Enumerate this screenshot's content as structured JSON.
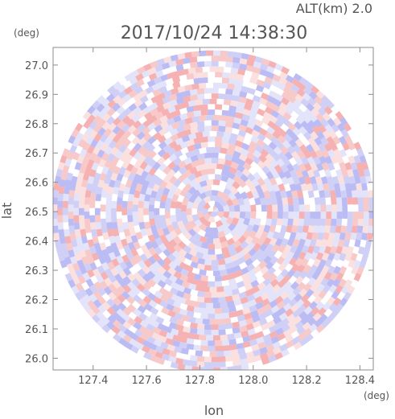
{
  "header": {
    "altitude_label": "ALT(km)  2.0",
    "timestamp": "2017/10/24 14:38:30"
  },
  "chart_data": {
    "type": "heatmap",
    "title": "2017/10/24 14:38:30",
    "subtitle": "ALT(km)  2.0",
    "xlabel": "lon",
    "ylabel": "lat",
    "x_unit": "(deg)",
    "y_unit": "(deg)",
    "xlim": [
      127.25,
      128.45
    ],
    "ylim": [
      25.96,
      27.06
    ],
    "x_ticks": [
      "127.4",
      "127.6",
      "127.8",
      "128.0",
      "128.2",
      "128.4"
    ],
    "y_ticks": [
      "27.0",
      "26.9",
      "26.8",
      "26.7",
      "26.6",
      "26.5",
      "26.4",
      "26.3",
      "26.2",
      "26.1",
      "26.0"
    ],
    "radar_center": {
      "lon": 127.85,
      "lat": 26.5
    },
    "radar_radius_deg_lat": 0.55,
    "grid": false,
    "legend": "none",
    "colors": {
      "positive": "#f4a5a5",
      "negative": "#b0b0f2",
      "axis": "#888888",
      "text": "#555555"
    }
  }
}
